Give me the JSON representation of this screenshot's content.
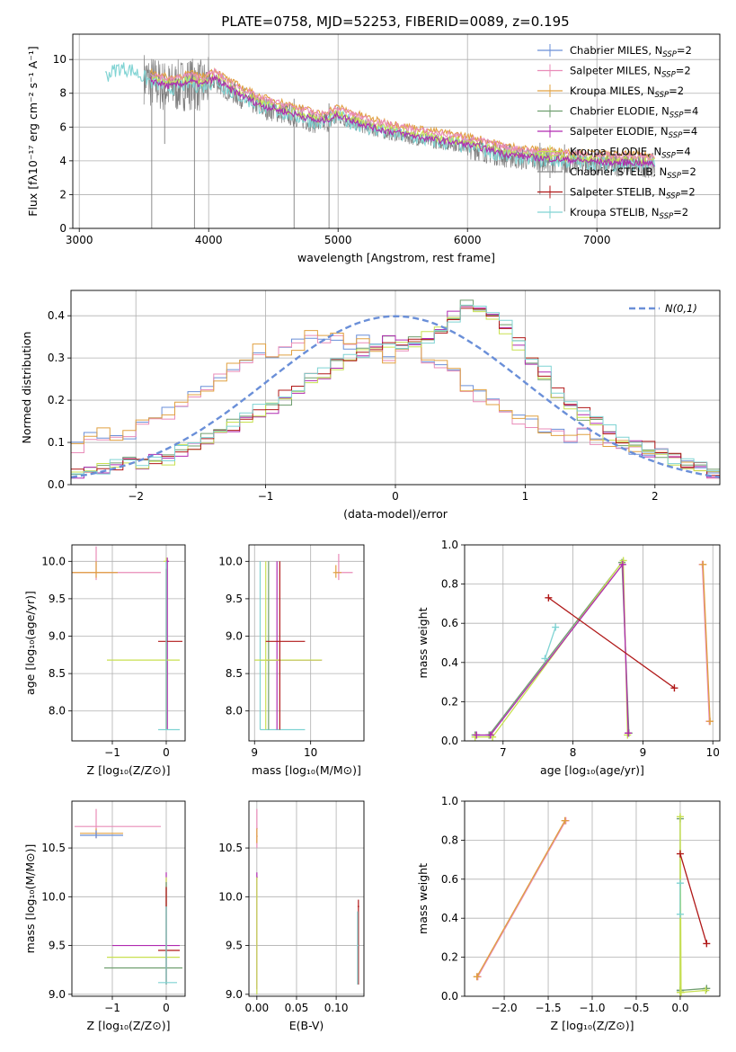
{
  "figure": {
    "title": "PLATE=0758, MJD=52253, FIBERID=0089, z=0.195"
  },
  "series_colors": {
    "Chabrier MILES": "#6a8fd8",
    "Salpeter MILES": "#e98bb8",
    "Kroupa MILES": "#e0a040",
    "Chabrier ELODIE": "#6f9e6f",
    "Salpeter ELODIE": "#b02ab0",
    "Kroupa ELODIE": "#c8e050",
    "Chabrier STELIB": "#8a8a8a",
    "Salpeter STELIB": "#b01818",
    "Kroupa STELIB": "#7fd3d3",
    "data": "#808080",
    "normal": "#6a8fd8"
  },
  "chart_data": [
    {
      "id": "spectrum",
      "type": "line",
      "title": "PLATE=0758, MJD=52253, FIBERID=0089, z=0.195",
      "xlabel": "wavelength [Angstrom, rest frame]",
      "ylabel": "Flux [fλ10⁻¹⁷ erg cm⁻² s⁻¹ A⁻¹]",
      "xlim": [
        2950,
        7950
      ],
      "ylim": [
        0,
        11.5
      ],
      "xticks": [
        "3000",
        "4000",
        "5000",
        "6000",
        "7000"
      ],
      "yticks": [
        "0",
        "2",
        "4",
        "6",
        "8",
        "10"
      ],
      "legend_position": "top-right",
      "legend": [
        {
          "main": "Chabrier MILES, N",
          "sub": "SSP",
          "end": "=2"
        },
        {
          "main": "Salpeter MILES, N",
          "sub": "SSP",
          "end": "=2"
        },
        {
          "main": "Kroupa MILES, N",
          "sub": "SSP",
          "end": "=2"
        },
        {
          "main": "Chabrier ELODIE, N",
          "sub": "SSP",
          "end": "=4"
        },
        {
          "main": "Salpeter ELODIE, N",
          "sub": "SSP",
          "end": "=4"
        },
        {
          "main": "Kroupa ELODIE, N",
          "sub": "SSP",
          "end": "=4"
        },
        {
          "main": "Chabrier STELIB, N",
          "sub": "SSP",
          "end": "=2"
        },
        {
          "main": "Salpeter STELIB, N",
          "sub": "SSP",
          "end": "=2"
        },
        {
          "main": "Kroupa STELIB, N",
          "sub": "SSP",
          "end": "=2"
        }
      ],
      "continuum": [
        [
          3200,
          9.0
        ],
        [
          3300,
          9.5
        ],
        [
          3400,
          9.4
        ],
        [
          3550,
          8.7
        ],
        [
          3700,
          8.3
        ],
        [
          3850,
          8.6
        ],
        [
          3950,
          8.4
        ],
        [
          4050,
          8.8
        ],
        [
          4150,
          8.2
        ],
        [
          4300,
          7.6
        ],
        [
          4400,
          7.2
        ],
        [
          4500,
          7.0
        ],
        [
          4700,
          6.6
        ],
        [
          4860,
          6.2
        ],
        [
          5000,
          6.6
        ],
        [
          5100,
          6.3
        ],
        [
          5300,
          5.8
        ],
        [
          5500,
          5.5
        ],
        [
          5700,
          5.2
        ],
        [
          5900,
          5.0
        ],
        [
          6100,
          4.7
        ],
        [
          6300,
          4.3
        ],
        [
          6500,
          4.1
        ],
        [
          6700,
          4.0
        ],
        [
          6900,
          3.9
        ],
        [
          7100,
          3.8
        ],
        [
          7300,
          3.8
        ],
        [
          7450,
          3.7
        ]
      ]
    },
    {
      "id": "residuals",
      "type": "area",
      "xlabel": "(data-model)/error",
      "ylabel": "Normed distribution",
      "xlim": [
        -2.5,
        2.5
      ],
      "ylim": [
        0,
        0.46
      ],
      "xticks": [
        "−2",
        "−1",
        "0",
        "1",
        "2"
      ],
      "yticks": [
        "0.0",
        "0.1",
        "0.2",
        "0.3",
        "0.4"
      ],
      "legend": "N(0,1)",
      "legend_position": "top-right",
      "bin_edges_start": -2.5,
      "bin_width": 0.1,
      "series": [
        {
          "name": "MILES",
          "values": [
            0.09,
            0.11,
            0.12,
            0.12,
            0.12,
            0.14,
            0.16,
            0.17,
            0.2,
            0.21,
            0.23,
            0.25,
            0.28,
            0.3,
            0.32,
            0.31,
            0.32,
            0.33,
            0.35,
            0.34,
            0.35,
            0.33,
            0.34,
            0.33,
            0.3,
            0.32,
            0.34,
            0.3,
            0.28,
            0.27,
            0.23,
            0.21,
            0.19,
            0.18,
            0.15,
            0.15,
            0.13,
            0.12,
            0.11,
            0.12,
            0.1,
            0.1,
            0.09,
            0.08,
            0.07,
            0.07,
            0.06,
            0.05,
            0.04,
            0.03
          ]
        },
        {
          "name": "ELODIE",
          "values": [
            0.03,
            0.04,
            0.04,
            0.05,
            0.05,
            0.05,
            0.06,
            0.06,
            0.08,
            0.09,
            0.11,
            0.12,
            0.14,
            0.15,
            0.17,
            0.18,
            0.2,
            0.22,
            0.24,
            0.26,
            0.28,
            0.3,
            0.31,
            0.33,
            0.34,
            0.33,
            0.34,
            0.35,
            0.37,
            0.4,
            0.43,
            0.42,
            0.4,
            0.37,
            0.33,
            0.3,
            0.26,
            0.22,
            0.18,
            0.16,
            0.14,
            0.12,
            0.1,
            0.09,
            0.08,
            0.07,
            0.06,
            0.05,
            0.04,
            0.03
          ]
        },
        {
          "name": "STELIB",
          "values": [
            0.03,
            0.04,
            0.04,
            0.05,
            0.05,
            0.06,
            0.06,
            0.07,
            0.08,
            0.09,
            0.11,
            0.12,
            0.14,
            0.16,
            0.18,
            0.19,
            0.21,
            0.23,
            0.25,
            0.27,
            0.29,
            0.3,
            0.31,
            0.32,
            0.33,
            0.32,
            0.33,
            0.34,
            0.36,
            0.38,
            0.42,
            0.43,
            0.41,
            0.38,
            0.34,
            0.31,
            0.27,
            0.23,
            0.2,
            0.17,
            0.15,
            0.13,
            0.11,
            0.1,
            0.09,
            0.08,
            0.06,
            0.05,
            0.04,
            0.03
          ]
        }
      ]
    },
    {
      "id": "age-Z",
      "type": "scatter",
      "xlabel": "Z [log₁₀(Z/Z⊙)]",
      "ylabel": "age  [log₁₀(age/yr)]",
      "xlim": [
        -1.75,
        0.35
      ],
      "ylim": [
        7.6,
        10.22
      ],
      "xticks": [
        "−1",
        "0"
      ],
      "yticks": [
        "8.0",
        "8.5",
        "9.0",
        "9.5",
        "10.0"
      ],
      "points": [
        {
          "s": "Salpeter MILES",
          "x": -1.3,
          "y": 9.85,
          "xe": [
            -1.75,
            -0.1
          ],
          "ye": [
            9.75,
            10.2
          ]
        },
        {
          "s": "Kroupa MILES",
          "x": -1.3,
          "y": 9.85,
          "xe": [
            -1.75,
            -0.9
          ],
          "ye": [
            9.78,
            10.0
          ]
        },
        {
          "s": "Kroupa ELODIE",
          "x": 0.0,
          "y": 10.0,
          "xe": [
            -0.05,
            0.02
          ],
          "ye": [
            7.75,
            10.05
          ]
        },
        {
          "s": "Salpeter ELODIE",
          "x": 0.02,
          "y": 10.0,
          "xe": [
            0.0,
            0.05
          ],
          "ye": [
            7.75,
            10.05
          ]
        },
        {
          "s": "Kroupa ELODIE",
          "x": 0.0,
          "y": 8.68,
          "xe": [
            -1.1,
            0.25
          ],
          "ye": [
            7.75,
            9.0
          ]
        },
        {
          "s": "Salpeter STELIB",
          "x": 0.0,
          "y": 8.93,
          "xe": [
            -0.15,
            0.3
          ],
          "ye": [
            7.75,
            9.9
          ]
        },
        {
          "s": "Kroupa STELIB",
          "x": 0.0,
          "y": 7.75,
          "xe": [
            -0.15,
            0.25
          ],
          "ye": [
            7.75,
            10.0
          ]
        }
      ]
    },
    {
      "id": "age-mass",
      "type": "scatter",
      "xlabel": "mass [log₁₀(M/M⊙)]",
      "ylabel": "",
      "xlim": [
        8.9,
        10.95
      ],
      "ylim": [
        7.6,
        10.22
      ],
      "xticks": [
        "9",
        "10"
      ],
      "yticks": [
        "8.0",
        "8.5",
        "9.0",
        "9.5",
        "10.0"
      ],
      "points": [
        {
          "s": "Salpeter MILES",
          "x": 10.5,
          "y": 9.85,
          "xe": [
            10.45,
            10.75
          ],
          "ye": [
            9.75,
            10.1
          ]
        },
        {
          "s": "Kroupa MILES",
          "x": 10.45,
          "y": 9.85,
          "xe": [
            10.4,
            10.55
          ],
          "ye": [
            9.78,
            9.95
          ]
        },
        {
          "s": "Kroupa STELIB",
          "x": 9.1,
          "y": 7.75,
          "xe": [
            9.1,
            9.9
          ],
          "ye": [
            7.75,
            10.0
          ]
        },
        {
          "s": "Chabrier ELODIE",
          "x": 9.25,
          "y": 8.68,
          "xe": [
            9.1,
            9.4
          ],
          "ye": [
            7.75,
            10.0
          ]
        },
        {
          "s": "Salpeter ELODIE",
          "x": 9.4,
          "y": 8.68,
          "xe": [
            9.2,
            10.2
          ],
          "ye": [
            7.75,
            10.0
          ]
        },
        {
          "s": "Kroupa ELODIE",
          "x": 9.2,
          "y": 8.68,
          "xe": [
            9.0,
            10.2
          ],
          "ye": [
            7.75,
            10.0
          ]
        },
        {
          "s": "Salpeter STELIB",
          "x": 9.45,
          "y": 8.93,
          "xe": [
            9.2,
            9.9
          ],
          "ye": [
            7.75,
            10.0
          ]
        }
      ]
    },
    {
      "id": "weight-age",
      "type": "line",
      "xlabel": "age  [log₁₀(age/yr)]",
      "ylabel": "mass weight",
      "xlim": [
        6.45,
        10.1
      ],
      "ylim": [
        0,
        1.0
      ],
      "xticks": [
        "7",
        "8",
        "9",
        "10"
      ],
      "yticks": [
        "0.0",
        "0.2",
        "0.4",
        "0.6",
        "0.8",
        "1.0"
      ],
      "series": [
        {
          "name": "Chabrier ELODIE",
          "x": [
            6.6,
            6.8,
            8.7,
            8.8
          ],
          "y": [
            0.03,
            0.03,
            0.91,
            0.04
          ]
        },
        {
          "name": "Kroupa ELODIE",
          "x": [
            6.6,
            6.85,
            8.72,
            8.78
          ],
          "y": [
            0.02,
            0.02,
            0.92,
            0.03
          ]
        },
        {
          "name": "Salpeter ELODIE",
          "x": [
            6.62,
            6.82,
            8.71,
            8.79
          ],
          "y": [
            0.03,
            0.03,
            0.9,
            0.04
          ]
        },
        {
          "name": "Kroupa STELIB",
          "x": [
            7.6,
            7.75
          ],
          "y": [
            0.42,
            0.58
          ]
        },
        {
          "name": "Salpeter STELIB",
          "x": [
            7.65,
            9.45
          ],
          "y": [
            0.73,
            0.27
          ]
        },
        {
          "name": "Salpeter MILES",
          "x": [
            9.85,
            9.95
          ],
          "y": [
            0.9,
            0.1
          ]
        },
        {
          "name": "Kroupa MILES",
          "x": [
            9.86,
            9.96
          ],
          "y": [
            0.9,
            0.1
          ]
        }
      ]
    },
    {
      "id": "mass-Z",
      "type": "scatter",
      "xlabel": "Z [log₁₀(Z/Z⊙)]",
      "ylabel": "mass [log₁₀(M/M⊙)]",
      "xlim": [
        -1.75,
        0.35
      ],
      "ylim": [
        8.98,
        10.98
      ],
      "xticks": [
        "−1",
        "0"
      ],
      "yticks": [
        "9.0",
        "9.5",
        "10.0",
        "10.5"
      ],
      "points": [
        {
          "s": "Salpeter MILES",
          "x": -1.3,
          "y": 10.72,
          "xe": [
            -1.7,
            -0.1
          ],
          "ye": [
            10.6,
            10.9
          ]
        },
        {
          "s": "Kroupa MILES",
          "x": -1.3,
          "y": 10.65,
          "xe": [
            -1.6,
            -0.8
          ],
          "ye": [
            10.6,
            10.7
          ]
        },
        {
          "s": "Chabrier MILES",
          "x": -1.3,
          "y": 10.63,
          "xe": [
            -1.6,
            -0.8
          ],
          "ye": [
            10.6,
            10.68
          ]
        },
        {
          "s": "Salpeter ELODIE",
          "x": 0.0,
          "y": 9.5,
          "xe": [
            -1.0,
            0.25
          ],
          "ye": [
            9.1,
            10.25
          ]
        },
        {
          "s": "Kroupa ELODIE",
          "x": 0.0,
          "y": 9.38,
          "xe": [
            -1.1,
            0.25
          ],
          "ye": [
            9.1,
            10.2
          ]
        },
        {
          "s": "Chabrier ELODIE",
          "x": 0.0,
          "y": 9.27,
          "xe": [
            -1.15,
            0.3
          ],
          "ye": [
            9.1,
            10.15
          ]
        },
        {
          "s": "Salpeter STELIB",
          "x": 0.0,
          "y": 9.45,
          "xe": [
            -0.15,
            0.25
          ],
          "ye": [
            9.1,
            10.1
          ]
        },
        {
          "s": "Kroupa STELIB",
          "x": 0.0,
          "y": 9.12,
          "xe": [
            -0.15,
            0.2
          ],
          "ye": [
            9.1,
            9.9
          ]
        }
      ]
    },
    {
      "id": "mass-EBV",
      "type": "scatter",
      "xlabel": "E(B-V)",
      "ylabel": "",
      "xlim": [
        -0.01,
        0.135
      ],
      "ylim": [
        8.98,
        10.98
      ],
      "xticks": [
        "0.00",
        "0.05",
        "0.10"
      ],
      "yticks": [
        "9.0",
        "9.5",
        "10.0",
        "10.5"
      ],
      "points": [
        {
          "s": "Salpeter MILES",
          "x": 0.0,
          "y": 10.7,
          "xe": [
            0.0,
            0.001
          ],
          "ye": [
            10.5,
            10.9
          ]
        },
        {
          "s": "Kroupa MILES",
          "x": 0.0,
          "y": 10.62,
          "xe": [
            0.0,
            0.001
          ],
          "ye": [
            10.55,
            10.7
          ]
        },
        {
          "s": "Salpeter ELODIE",
          "x": 0.0,
          "y": 10.2,
          "xe": [
            0.0,
            0.001
          ],
          "ye": [
            9.05,
            10.25
          ]
        },
        {
          "s": "Kroupa ELODIE",
          "x": 0.0,
          "y": 10.0,
          "xe": [
            0.0,
            0.001
          ],
          "ye": [
            9.0,
            10.2
          ]
        },
        {
          "s": "Salpeter STELIB",
          "x": 0.128,
          "y": 9.9,
          "xe": [
            0.127,
            0.129
          ],
          "ye": [
            9.1,
            9.97
          ]
        },
        {
          "s": "Kroupa STELIB",
          "x": 0.127,
          "y": 9.5,
          "xe": [
            0.126,
            0.128
          ],
          "ye": [
            9.1,
            9.85
          ]
        }
      ]
    },
    {
      "id": "weight-Z",
      "type": "line",
      "xlabel": "Z [log₁₀(Z/Z⊙)]",
      "ylabel": "mass weight",
      "xlim": [
        -2.45,
        0.45
      ],
      "ylim": [
        0,
        1.0
      ],
      "xticks": [
        "−2.0",
        "−1.5",
        "−1.0",
        "−0.5",
        "0.0"
      ],
      "yticks": [
        "0.0",
        "0.2",
        "0.4",
        "0.6",
        "0.8",
        "1.0"
      ],
      "series": [
        {
          "name": "Salpeter MILES",
          "x": [
            -2.3,
            -1.3
          ],
          "y": [
            0.1,
            0.9
          ]
        },
        {
          "name": "Kroupa MILES",
          "x": [
            -2.31,
            -1.31
          ],
          "y": [
            0.1,
            0.9
          ]
        },
        {
          "name": "Chabrier ELODIE",
          "x": [
            0.0,
            0.0,
            0.0,
            0.3
          ],
          "y": [
            0.03,
            0.91,
            0.03,
            0.04
          ]
        },
        {
          "name": "Kroupa ELODIE",
          "x": [
            0.0,
            0.0,
            0.01,
            0.29
          ],
          "y": [
            0.02,
            0.92,
            0.02,
            0.03
          ]
        },
        {
          "name": "Kroupa STELIB",
          "x": [
            0.0,
            0.0
          ],
          "y": [
            0.42,
            0.58
          ]
        },
        {
          "name": "Salpeter STELIB",
          "x": [
            0.0,
            0.3
          ],
          "y": [
            0.73,
            0.27
          ]
        }
      ]
    }
  ]
}
